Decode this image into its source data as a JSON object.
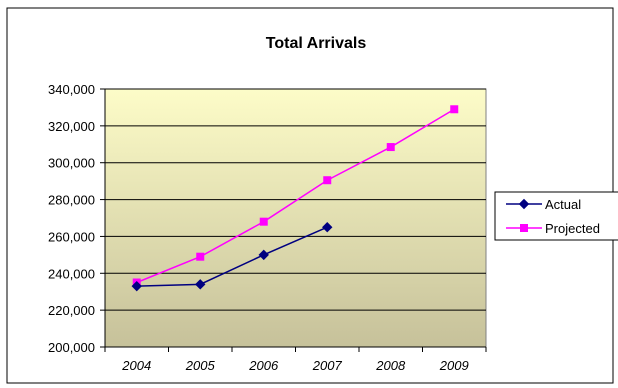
{
  "chart_data": {
    "type": "line",
    "title": "Total Arrivals",
    "xlabel": "",
    "ylabel": "",
    "categories": [
      "2004",
      "2005",
      "2006",
      "2007",
      "2008",
      "2009"
    ],
    "ylim": [
      200000,
      340000
    ],
    "yticks": [
      200000,
      220000,
      240000,
      260000,
      280000,
      300000,
      320000,
      340000
    ],
    "ytick_labels": [
      "200,000",
      "220,000",
      "240,000",
      "260,000",
      "280,000",
      "300,000",
      "320,000",
      "340,000"
    ],
    "grid": "horizontal",
    "legend_position": "right",
    "series": [
      {
        "name": "Actual",
        "color": "#000080",
        "marker": "diamond",
        "values": [
          233000,
          234000,
          250000,
          265000,
          null,
          null
        ]
      },
      {
        "name": "Projected",
        "color": "#ff00ff",
        "marker": "square",
        "values": [
          235000,
          249000,
          268000,
          290500,
          308500,
          329000
        ]
      }
    ],
    "colors": {
      "plot_gradient_top": "#fdfcc8",
      "plot_gradient_bottom": "#c6c19a"
    }
  }
}
